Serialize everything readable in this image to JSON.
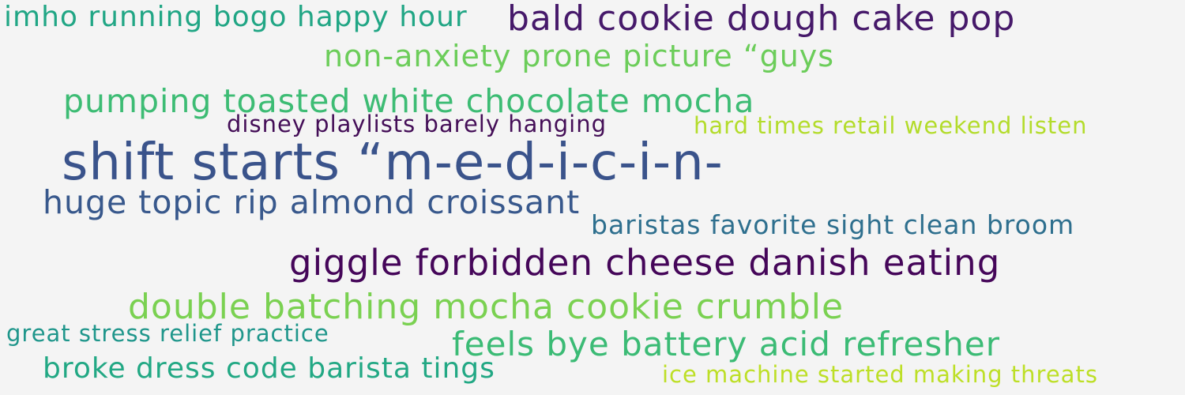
{
  "phrases": [
    {
      "text": "imho running bogo happy hour",
      "color": "#21a685"
    },
    {
      "text": "bald cookie dough cake pop",
      "color": "#46196a"
    },
    {
      "text": "non-anxiety prone picture “guys",
      "color": "#6ccd5a"
    },
    {
      "text": "pumping toasted white chocolate mocha",
      "color": "#3dbc74"
    },
    {
      "text": "disney playlists barely hanging",
      "color": "#440e57"
    },
    {
      "text": "hard times retail weekend listen",
      "color": "#b3dc2b"
    },
    {
      "text": "shift starts “m-e-d-i-c-i-n-",
      "color": "#3a538b"
    },
    {
      "text": "huge topic rip almond croissant",
      "color": "#38588c"
    },
    {
      "text": "baristas favorite sight clean broom",
      "color": "#2e6f8e"
    },
    {
      "text": "giggle forbidden cheese danish eating",
      "color": "#450659"
    },
    {
      "text": "double batching mocha cookie crumble",
      "color": "#7ad151"
    },
    {
      "text": "great stress relief practice",
      "color": "#1f968b"
    },
    {
      "text": "feels bye battery acid refresher",
      "color": "#3bbb75"
    },
    {
      "text": "broke dress code barista tings",
      "color": "#22a884"
    },
    {
      "text": "ice machine started making threats",
      "color": "#bddf26"
    }
  ]
}
